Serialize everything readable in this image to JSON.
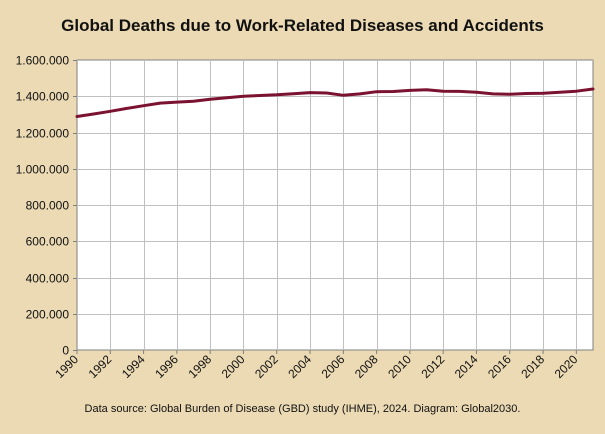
{
  "chart_data": {
    "type": "line",
    "title": "Global Deaths due to Work-Related Diseases and Accidents",
    "source": "Data source: Global Burden of Disease (GBD) study (IHME), 2024. Diagram: Global2030.",
    "xlabel": "",
    "ylabel": "",
    "xlim": [
      1990,
      2021
    ],
    "ylim": [
      0,
      1600000
    ],
    "y_ticks": [
      {
        "value": 0,
        "label": "0"
      },
      {
        "value": 200000,
        "label": "200.000"
      },
      {
        "value": 400000,
        "label": "400.000"
      },
      {
        "value": 600000,
        "label": "600.000"
      },
      {
        "value": 800000,
        "label": "800.000"
      },
      {
        "value": 1000000,
        "label": "1.000.000"
      },
      {
        "value": 1200000,
        "label": "1.200.000"
      },
      {
        "value": 1400000,
        "label": "1.400.000"
      },
      {
        "value": 1600000,
        "label": "1.600.000"
      }
    ],
    "x_ticks": [
      "1990",
      "1992",
      "1994",
      "1996",
      "1998",
      "2000",
      "2002",
      "2004",
      "2006",
      "2008",
      "2010",
      "2012",
      "2014",
      "2016",
      "2018",
      "2020"
    ],
    "grid": true,
    "legend": "none",
    "colors": {
      "line": "#7b1230",
      "grid": "#c0c0c0",
      "axis": "#808080",
      "background": "#ebdab4",
      "plot_background": "#ffffff"
    },
    "x": [
      1990,
      1991,
      1992,
      1993,
      1994,
      1995,
      1996,
      1997,
      1998,
      1999,
      2000,
      2001,
      2002,
      2003,
      2004,
      2005,
      2006,
      2007,
      2008,
      2009,
      2010,
      2011,
      2012,
      2013,
      2014,
      2015,
      2016,
      2017,
      2018,
      2019,
      2020,
      2021
    ],
    "series": [
      {
        "values": [
          1288000,
          1302000,
          1317000,
          1333000,
          1348000,
          1362000,
          1368000,
          1372000,
          1383000,
          1392000,
          1400000,
          1404000,
          1408000,
          1414000,
          1420000,
          1418000,
          1405000,
          1413000,
          1425000,
          1426000,
          1432000,
          1436000,
          1428000,
          1427000,
          1422000,
          1413000,
          1411000,
          1415000,
          1417000,
          1422000,
          1428000,
          1440000
        ]
      }
    ]
  }
}
